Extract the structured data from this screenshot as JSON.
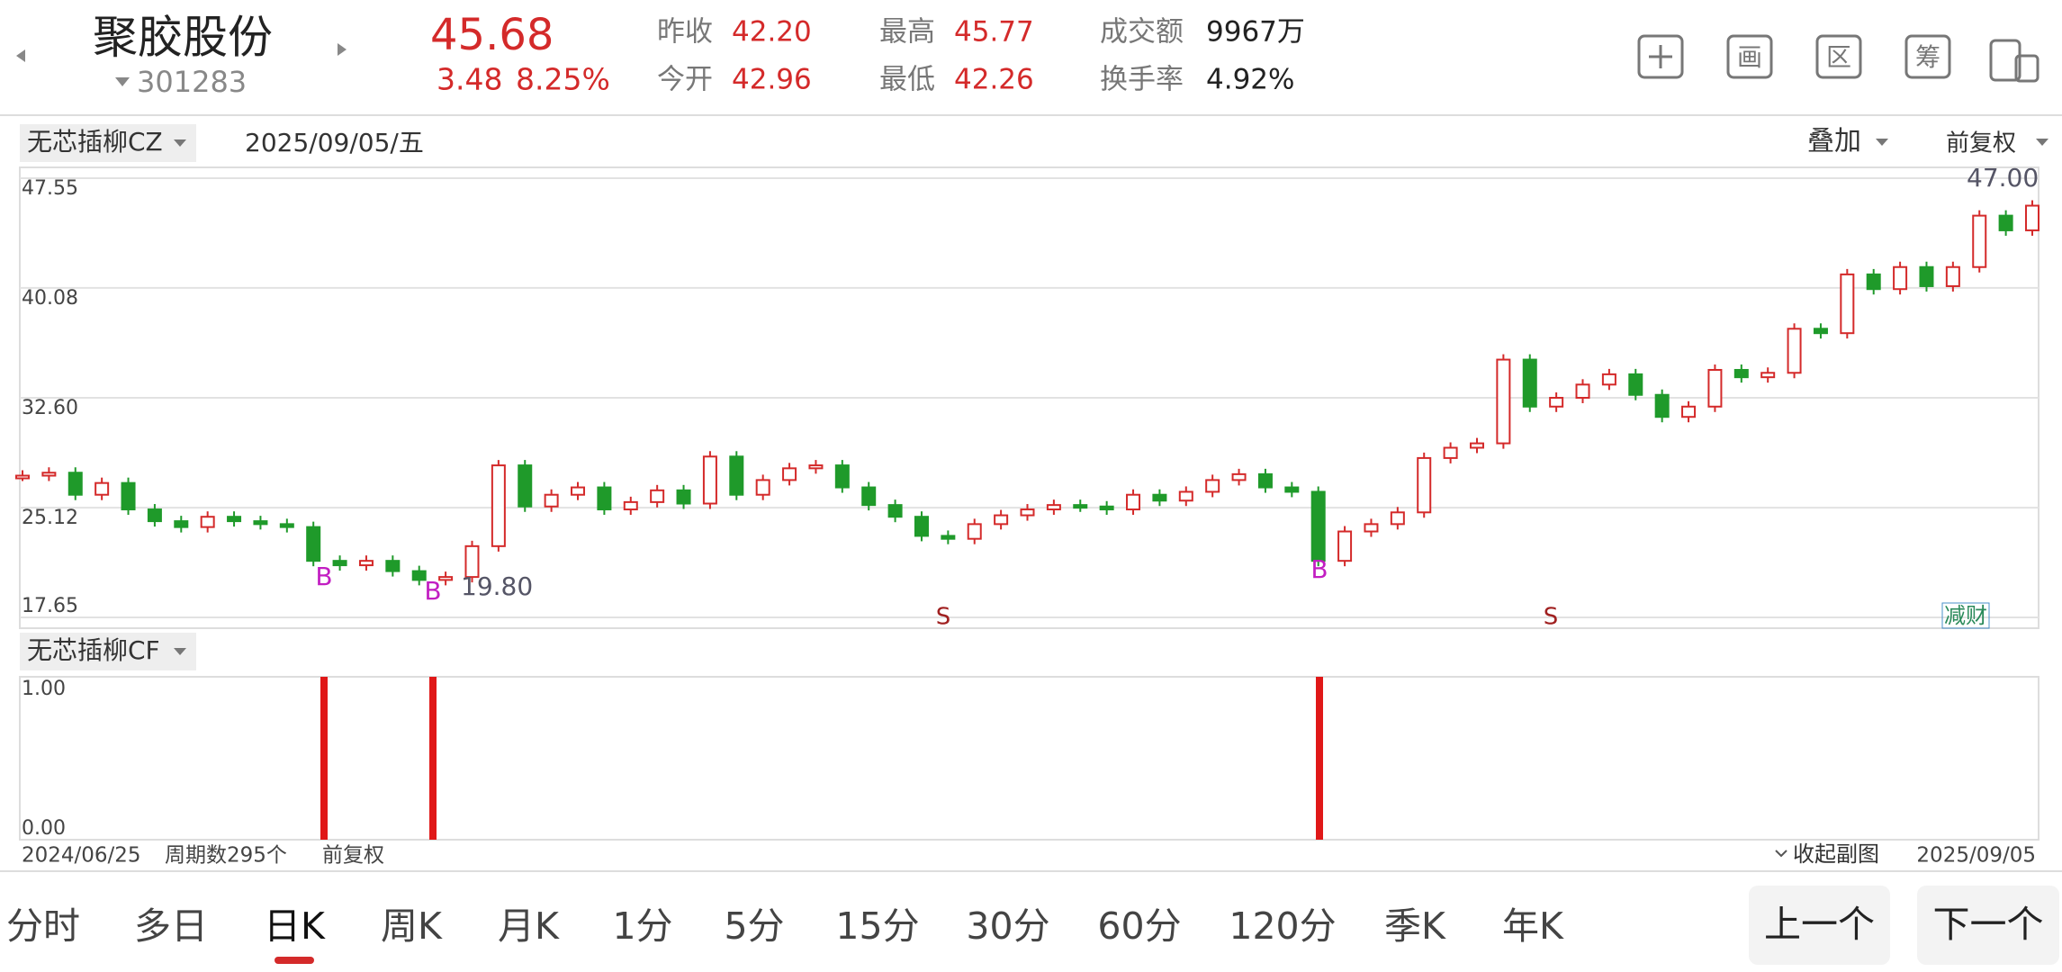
{
  "header": {
    "name": "聚胶股份",
    "code": "301283",
    "price": "45.68",
    "change": "3.48",
    "change_pct": "8.25%",
    "stats": [
      {
        "label": "昨收",
        "value": "42.20"
      },
      {
        "label": "今开",
        "value": "42.96"
      },
      {
        "label": "最高",
        "value": "45.77"
      },
      {
        "label": "最低",
        "value": "42.26"
      },
      {
        "label": "成交额",
        "value": "9967万"
      },
      {
        "label": "换手率",
        "value": "4.92%"
      }
    ],
    "icons": [
      "画",
      "区",
      "筹"
    ]
  },
  "chart_data": {
    "type": "candlestick",
    "indicator": "无芯插柳CZ",
    "date": "2025/09/05/五",
    "overlay": "叠加",
    "adjust": "前复权",
    "ylim": [
      17.65,
      47.55
    ],
    "yticks": [
      {
        "value": 47.55,
        "label": "47.55"
      },
      {
        "value": 40.08,
        "label": "40.08"
      },
      {
        "value": 32.6,
        "label": "32.60"
      },
      {
        "value": 25.12,
        "label": "25.12"
      },
      {
        "value": 17.65,
        "label": "17.65"
      }
    ],
    "closes": [
      27.3,
      27.5,
      26.0,
      26.8,
      25.0,
      24.2,
      23.8,
      24.5,
      24.2,
      24.0,
      23.8,
      21.5,
      21.2,
      21.5,
      20.8,
      20.2,
      20.4,
      22.5,
      28.0,
      25.2,
      26.0,
      26.5,
      25.0,
      25.5,
      26.3,
      25.4,
      28.6,
      26.0,
      27.0,
      27.8,
      28.0,
      26.5,
      25.3,
      24.5,
      23.2,
      23.0,
      24.0,
      24.6,
      25.0,
      25.3,
      25.2,
      25.0,
      26.0,
      25.6,
      26.2,
      27.0,
      27.4,
      26.5,
      26.2,
      21.5,
      23.5,
      24.0,
      24.8,
      28.5,
      29.2,
      29.5,
      35.2,
      32.0,
      32.6,
      33.5,
      34.2,
      32.8,
      31.3,
      32.0,
      34.5,
      34.0,
      34.3,
      37.3,
      37.0,
      41.0,
      40.0,
      41.5,
      40.2,
      41.5,
      45.0,
      44.0,
      45.68
    ],
    "annotations": [
      {
        "label": "47.00",
        "value": 47.0
      },
      {
        "label": "19.80",
        "value": 19.8
      }
    ],
    "markers": [
      "B",
      "B",
      "B",
      "S",
      "S"
    ],
    "badge": "减财"
  },
  "sub_chart": {
    "indicator": "无芯插柳CF",
    "ylim": [
      0,
      1
    ],
    "yticks": [
      {
        "value": 1,
        "label": "1.00"
      },
      {
        "value": 0,
        "label": "0.00"
      }
    ],
    "signals": [
      1,
      1,
      1
    ]
  },
  "footer": {
    "start": "2024/06/25",
    "periods": "周期数295个",
    "adjust": "前复权",
    "collapse": "收起副图",
    "end": "2025/09/05"
  },
  "tabs": [
    "分时",
    "多日",
    "日K",
    "周K",
    "月K",
    "1分",
    "5分",
    "15分",
    "30分",
    "60分",
    "120分",
    "季K",
    "年K"
  ],
  "buttons": [
    "上一个",
    "下一个"
  ]
}
